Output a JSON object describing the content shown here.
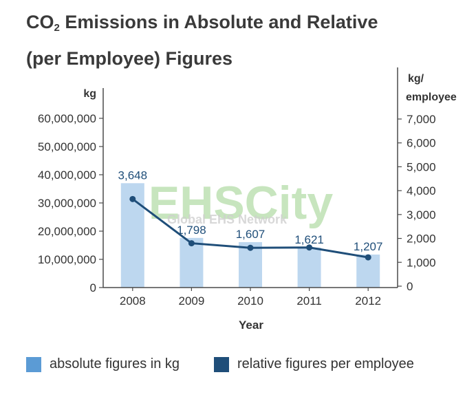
{
  "title": {
    "line1_pre": "CO",
    "line1_sub": "2",
    "line1_post": " Emissions in Absolute and Relative",
    "line2": "(per Employee) Figures"
  },
  "watermark": {
    "main": "EHSCity",
    "sub": "Global EHS Network"
  },
  "colors": {
    "bar": "#bdd7ef",
    "line": "#1f4e79",
    "axis": "#4a4a4a",
    "legend_bar": "#5b9bd5",
    "watermark": "#9bd18a"
  },
  "chart_data": {
    "type": "bar+line",
    "categories": [
      "2008",
      "2009",
      "2010",
      "2011",
      "2012"
    ],
    "xlabel": "Year",
    "left_axis": {
      "label": "kg",
      "ylim": [
        0,
        60000000
      ],
      "ticks": [
        "0",
        "10,000,000",
        "20,000,000",
        "30,000,000",
        "40,000,000",
        "50,000,000",
        "60,000,000"
      ]
    },
    "right_axis": {
      "label_line1": "kg/",
      "label_line2": "employee",
      "ylim": [
        0,
        7000
      ],
      "ticks": [
        "0",
        "1,000",
        "2,000",
        "3,000",
        "4,000",
        "5,000",
        "6,000",
        "7,000"
      ]
    },
    "series": [
      {
        "name": "absolute figures in kg",
        "kind": "bar",
        "axis": "left",
        "values": [
          37000000,
          17600000,
          16100000,
          14200000,
          11700000
        ]
      },
      {
        "name": "relative figures per employee",
        "kind": "line",
        "axis": "right",
        "values": [
          3648,
          1798,
          1607,
          1621,
          1207
        ],
        "labels": [
          "3,648",
          "1,798",
          "1,607",
          "1,621",
          "1,207"
        ]
      }
    ],
    "legend_position": "bottom"
  },
  "legend": [
    {
      "label": "absolute figures in kg"
    },
    {
      "label": "relative figures per employee"
    }
  ]
}
